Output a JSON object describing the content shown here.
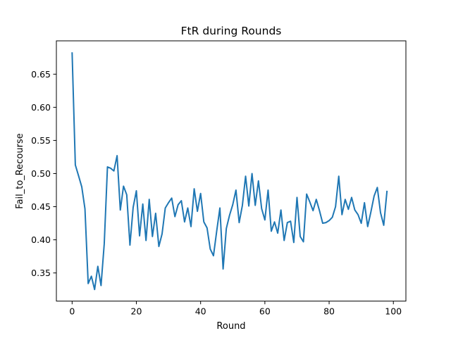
{
  "chart_data": {
    "type": "line",
    "title": "FtR during Rounds",
    "xlabel": "Round",
    "ylabel": "Fail_to_Recourse",
    "xlim": [
      -4.9,
      103.9
    ],
    "ylim": [
      0.3075,
      0.7003
    ],
    "xticks": [
      0,
      20,
      40,
      60,
      80,
      100
    ],
    "xtick_labels": [
      "0",
      "20",
      "40",
      "60",
      "80",
      "100"
    ],
    "yticks": [
      0.35,
      0.4,
      0.45,
      0.5,
      0.55,
      0.6,
      0.65
    ],
    "ytick_labels": [
      "0.35",
      "0.40",
      "0.45",
      "0.50",
      "0.55",
      "0.60",
      "0.65"
    ],
    "grid": false,
    "line_color": "#1f77b4",
    "series": [
      {
        "x": [
          0,
          1,
          2,
          3,
          4,
          5,
          6,
          7,
          8,
          9,
          10,
          11,
          12,
          13,
          14,
          15,
          16,
          17,
          18,
          19,
          20,
          21,
          22,
          23,
          24,
          25,
          26,
          27,
          28,
          29,
          30,
          31,
          32,
          33,
          34,
          35,
          36,
          37,
          38,
          39,
          40,
          41,
          42,
          43,
          44,
          45,
          46,
          47,
          48,
          49,
          50,
          51,
          52,
          53,
          54,
          55,
          56,
          57,
          58,
          59,
          60,
          61,
          62,
          63,
          64,
          65,
          66,
          67,
          68,
          69,
          70,
          71,
          72,
          73,
          74,
          75,
          76,
          77,
          78,
          79,
          80,
          81,
          82,
          83,
          84,
          85,
          86,
          87,
          88,
          89,
          90,
          91,
          92,
          93,
          94,
          95,
          96,
          97,
          98
        ],
        "values": [
          0.682,
          0.513,
          0.4967,
          0.48,
          0.4467,
          0.334,
          0.345,
          0.325,
          0.36,
          0.331,
          0.394,
          0.51,
          0.508,
          0.504,
          0.527,
          0.445,
          0.481,
          0.468,
          0.392,
          0.449,
          0.474,
          0.406,
          0.454,
          0.399,
          0.461,
          0.405,
          0.44,
          0.39,
          0.409,
          0.448,
          0.456,
          0.463,
          0.435,
          0.453,
          0.459,
          0.427,
          0.448,
          0.42,
          0.477,
          0.443,
          0.47,
          0.427,
          0.418,
          0.386,
          0.376,
          0.413,
          0.448,
          0.356,
          0.417,
          0.437,
          0.453,
          0.475,
          0.426,
          0.452,
          0.496,
          0.451,
          0.5,
          0.452,
          0.489,
          0.447,
          0.43,
          0.475,
          0.413,
          0.427,
          0.41,
          0.445,
          0.399,
          0.426,
          0.428,
          0.396,
          0.464,
          0.405,
          0.397,
          0.469,
          0.457,
          0.444,
          0.461,
          0.444,
          0.425,
          0.426,
          0.429,
          0.434,
          0.45,
          0.496,
          0.438,
          0.461,
          0.446,
          0.464,
          0.445,
          0.438,
          0.425,
          0.456,
          0.42,
          0.442,
          0.466,
          0.479,
          0.441,
          0.422,
          0.473
        ]
      }
    ]
  }
}
